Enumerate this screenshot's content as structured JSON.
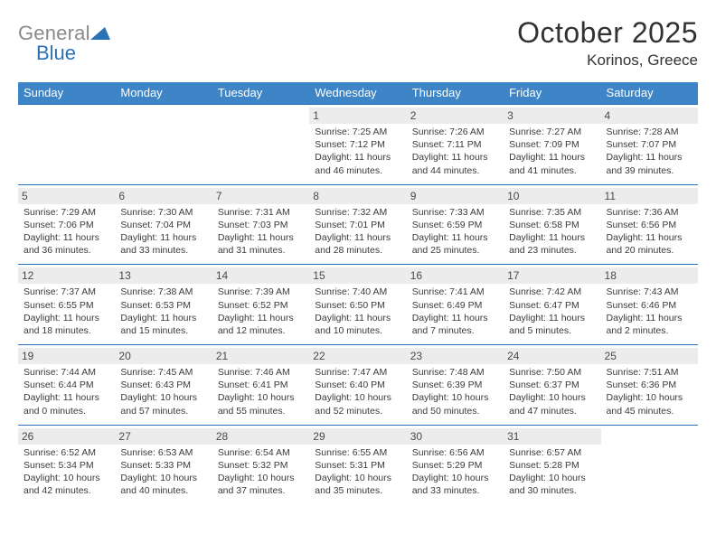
{
  "logo": {
    "text_gray": "General",
    "text_blue": "Blue"
  },
  "title": "October 2025",
  "location": "Korinos, Greece",
  "colors": {
    "header_bar": "#3d85c6",
    "row_border": "#2a71b8",
    "daynum_bg": "#ececec",
    "logo_gray": "#8a8a8a",
    "logo_blue": "#2a71b8",
    "text": "#323232",
    "background": "#ffffff"
  },
  "day_headers": [
    "Sunday",
    "Monday",
    "Tuesday",
    "Wednesday",
    "Thursday",
    "Friday",
    "Saturday"
  ],
  "weeks": [
    [
      null,
      null,
      null,
      {
        "n": "1",
        "sr": "Sunrise: 7:25 AM",
        "ss": "Sunset: 7:12 PM",
        "d1": "Daylight: 11 hours",
        "d2": "and 46 minutes."
      },
      {
        "n": "2",
        "sr": "Sunrise: 7:26 AM",
        "ss": "Sunset: 7:11 PM",
        "d1": "Daylight: 11 hours",
        "d2": "and 44 minutes."
      },
      {
        "n": "3",
        "sr": "Sunrise: 7:27 AM",
        "ss": "Sunset: 7:09 PM",
        "d1": "Daylight: 11 hours",
        "d2": "and 41 minutes."
      },
      {
        "n": "4",
        "sr": "Sunrise: 7:28 AM",
        "ss": "Sunset: 7:07 PM",
        "d1": "Daylight: 11 hours",
        "d2": "and 39 minutes."
      }
    ],
    [
      {
        "n": "5",
        "sr": "Sunrise: 7:29 AM",
        "ss": "Sunset: 7:06 PM",
        "d1": "Daylight: 11 hours",
        "d2": "and 36 minutes."
      },
      {
        "n": "6",
        "sr": "Sunrise: 7:30 AM",
        "ss": "Sunset: 7:04 PM",
        "d1": "Daylight: 11 hours",
        "d2": "and 33 minutes."
      },
      {
        "n": "7",
        "sr": "Sunrise: 7:31 AM",
        "ss": "Sunset: 7:03 PM",
        "d1": "Daylight: 11 hours",
        "d2": "and 31 minutes."
      },
      {
        "n": "8",
        "sr": "Sunrise: 7:32 AM",
        "ss": "Sunset: 7:01 PM",
        "d1": "Daylight: 11 hours",
        "d2": "and 28 minutes."
      },
      {
        "n": "9",
        "sr": "Sunrise: 7:33 AM",
        "ss": "Sunset: 6:59 PM",
        "d1": "Daylight: 11 hours",
        "d2": "and 25 minutes."
      },
      {
        "n": "10",
        "sr": "Sunrise: 7:35 AM",
        "ss": "Sunset: 6:58 PM",
        "d1": "Daylight: 11 hours",
        "d2": "and 23 minutes."
      },
      {
        "n": "11",
        "sr": "Sunrise: 7:36 AM",
        "ss": "Sunset: 6:56 PM",
        "d1": "Daylight: 11 hours",
        "d2": "and 20 minutes."
      }
    ],
    [
      {
        "n": "12",
        "sr": "Sunrise: 7:37 AM",
        "ss": "Sunset: 6:55 PM",
        "d1": "Daylight: 11 hours",
        "d2": "and 18 minutes."
      },
      {
        "n": "13",
        "sr": "Sunrise: 7:38 AM",
        "ss": "Sunset: 6:53 PM",
        "d1": "Daylight: 11 hours",
        "d2": "and 15 minutes."
      },
      {
        "n": "14",
        "sr": "Sunrise: 7:39 AM",
        "ss": "Sunset: 6:52 PM",
        "d1": "Daylight: 11 hours",
        "d2": "and 12 minutes."
      },
      {
        "n": "15",
        "sr": "Sunrise: 7:40 AM",
        "ss": "Sunset: 6:50 PM",
        "d1": "Daylight: 11 hours",
        "d2": "and 10 minutes."
      },
      {
        "n": "16",
        "sr": "Sunrise: 7:41 AM",
        "ss": "Sunset: 6:49 PM",
        "d1": "Daylight: 11 hours",
        "d2": "and 7 minutes."
      },
      {
        "n": "17",
        "sr": "Sunrise: 7:42 AM",
        "ss": "Sunset: 6:47 PM",
        "d1": "Daylight: 11 hours",
        "d2": "and 5 minutes."
      },
      {
        "n": "18",
        "sr": "Sunrise: 7:43 AM",
        "ss": "Sunset: 6:46 PM",
        "d1": "Daylight: 11 hours",
        "d2": "and 2 minutes."
      }
    ],
    [
      {
        "n": "19",
        "sr": "Sunrise: 7:44 AM",
        "ss": "Sunset: 6:44 PM",
        "d1": "Daylight: 11 hours",
        "d2": "and 0 minutes."
      },
      {
        "n": "20",
        "sr": "Sunrise: 7:45 AM",
        "ss": "Sunset: 6:43 PM",
        "d1": "Daylight: 10 hours",
        "d2": "and 57 minutes."
      },
      {
        "n": "21",
        "sr": "Sunrise: 7:46 AM",
        "ss": "Sunset: 6:41 PM",
        "d1": "Daylight: 10 hours",
        "d2": "and 55 minutes."
      },
      {
        "n": "22",
        "sr": "Sunrise: 7:47 AM",
        "ss": "Sunset: 6:40 PM",
        "d1": "Daylight: 10 hours",
        "d2": "and 52 minutes."
      },
      {
        "n": "23",
        "sr": "Sunrise: 7:48 AM",
        "ss": "Sunset: 6:39 PM",
        "d1": "Daylight: 10 hours",
        "d2": "and 50 minutes."
      },
      {
        "n": "24",
        "sr": "Sunrise: 7:50 AM",
        "ss": "Sunset: 6:37 PM",
        "d1": "Daylight: 10 hours",
        "d2": "and 47 minutes."
      },
      {
        "n": "25",
        "sr": "Sunrise: 7:51 AM",
        "ss": "Sunset: 6:36 PM",
        "d1": "Daylight: 10 hours",
        "d2": "and 45 minutes."
      }
    ],
    [
      {
        "n": "26",
        "sr": "Sunrise: 6:52 AM",
        "ss": "Sunset: 5:34 PM",
        "d1": "Daylight: 10 hours",
        "d2": "and 42 minutes."
      },
      {
        "n": "27",
        "sr": "Sunrise: 6:53 AM",
        "ss": "Sunset: 5:33 PM",
        "d1": "Daylight: 10 hours",
        "d2": "and 40 minutes."
      },
      {
        "n": "28",
        "sr": "Sunrise: 6:54 AM",
        "ss": "Sunset: 5:32 PM",
        "d1": "Daylight: 10 hours",
        "d2": "and 37 minutes."
      },
      {
        "n": "29",
        "sr": "Sunrise: 6:55 AM",
        "ss": "Sunset: 5:31 PM",
        "d1": "Daylight: 10 hours",
        "d2": "and 35 minutes."
      },
      {
        "n": "30",
        "sr": "Sunrise: 6:56 AM",
        "ss": "Sunset: 5:29 PM",
        "d1": "Daylight: 10 hours",
        "d2": "and 33 minutes."
      },
      {
        "n": "31",
        "sr": "Sunrise: 6:57 AM",
        "ss": "Sunset: 5:28 PM",
        "d1": "Daylight: 10 hours",
        "d2": "and 30 minutes."
      },
      null
    ]
  ]
}
